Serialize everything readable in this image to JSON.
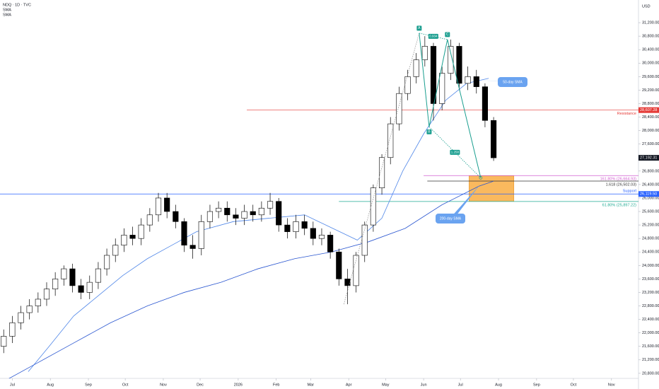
{
  "chart_data": {
    "type": "candlestick",
    "title": "NDQ · 1D · TVC",
    "indicators": [
      "SMA",
      "SMA"
    ],
    "currency": "USD",
    "up_color": "#ffffff",
    "down_color": "#000000",
    "x": [
      -7,
      0,
      7,
      14,
      21,
      28,
      35,
      42,
      49,
      56,
      63,
      70,
      77,
      84,
      91,
      98,
      105,
      112,
      119,
      126,
      133,
      140,
      147,
      154,
      161,
      168,
      175,
      182,
      189,
      196,
      203,
      210,
      217,
      224,
      231,
      238,
      245,
      252,
      259,
      266,
      273,
      280,
      287,
      294,
      301,
      308,
      315,
      322,
      329,
      336,
      343,
      350,
      357,
      364,
      371,
      378,
      385,
      392
    ],
    "open": [
      21600,
      21900,
      22300,
      22600,
      22800,
      23000,
      23300,
      23600,
      23900,
      23400,
      23200,
      23500,
      23900,
      24300,
      24600,
      24900,
      24800,
      25200,
      25500,
      26000,
      25600,
      25300,
      24600,
      24500,
      25300,
      25600,
      25700,
      25500,
      25400,
      25600,
      25500,
      25700,
      25900,
      25200,
      25000,
      25300,
      25100,
      24800,
      24900,
      24400,
      23600,
      23400,
      24300,
      25200,
      26300,
      27200,
      28200,
      29100,
      29600,
      30100,
      30500,
      28800,
      29700,
      30500,
      29400,
      29600,
      29300,
      28300
    ],
    "high": [
      22100,
      22500,
      22800,
      23000,
      23200,
      23500,
      23800,
      24000,
      24050,
      23600,
      23700,
      24100,
      24500,
      24800,
      25100,
      25150,
      25400,
      25700,
      26150,
      26150,
      25800,
      25400,
      24900,
      25500,
      25800,
      25900,
      25900,
      25700,
      25800,
      25800,
      25900,
      26150,
      26000,
      25400,
      25500,
      25500,
      25300,
      25100,
      25000,
      24500,
      23900,
      24400,
      25300,
      26400,
      27300,
      28400,
      29300,
      29800,
      30300,
      30800,
      30600,
      29900,
      30700,
      30600,
      29900,
      29800,
      29400,
      28400
    ],
    "low": [
      21400,
      21700,
      22100,
      22400,
      22600,
      22800,
      23100,
      23400,
      23200,
      23000,
      23000,
      23300,
      23700,
      24100,
      24400,
      24600,
      24600,
      25000,
      25300,
      25400,
      25100,
      24400,
      24200,
      24300,
      25100,
      25400,
      25300,
      25200,
      25200,
      25300,
      25300,
      25500,
      25000,
      24800,
      24800,
      24900,
      24600,
      24600,
      24200,
      23400,
      22850,
      23200,
      24100,
      25000,
      26100,
      27000,
      28000,
      28900,
      29400,
      29900,
      28300,
      28600,
      29500,
      29200,
      29200,
      29100,
      28100,
      27100
    ],
    "close": [
      21900,
      22300,
      22600,
      22800,
      23000,
      23300,
      23600,
      23900,
      23400,
      23200,
      23500,
      23900,
      24300,
      24600,
      24900,
      24800,
      25200,
      25500,
      26000,
      25600,
      25300,
      24600,
      24500,
      25300,
      25600,
      25700,
      25500,
      25400,
      25600,
      25500,
      25700,
      25900,
      25200,
      25000,
      25300,
      25100,
      24800,
      24900,
      24400,
      23600,
      23400,
      24300,
      25200,
      26300,
      27200,
      28200,
      29100,
      29600,
      30100,
      30500,
      28800,
      29700,
      30500,
      29400,
      29600,
      29300,
      28300,
      27192.31
    ],
    "series": [
      {
        "name": "50-day SMA",
        "color": "#4f86e8",
        "x": [
          13,
          30,
          50,
          70,
          90,
          110,
          130,
          150,
          180,
          209,
          238,
          261,
          281,
          301,
          318,
          335,
          353,
          370,
          388
        ],
        "values": [
          20850,
          21600,
          22500,
          23100,
          23700,
          24200,
          24600,
          25000,
          25300,
          25400,
          25500,
          25100,
          24750,
          25400,
          26800,
          27900,
          28900,
          29400,
          29550
        ]
      },
      {
        "name": "200-day SMA",
        "color": "#2a56d0",
        "x": [
          -10,
          20,
          50,
          80,
          110,
          140,
          170,
          200,
          230,
          260,
          290,
          320,
          350,
          380,
          392
        ],
        "values": [
          20500,
          21100,
          21700,
          22300,
          22800,
          23200,
          23500,
          23900,
          24200,
          24400,
          24700,
          25100,
          25800,
          26350,
          26500
        ]
      }
    ],
    "levels": [
      {
        "value": 28607.28,
        "label": "Resistance",
        "price_label": "28,607.28",
        "color": "#e53935",
        "x_start": 191
      },
      {
        "value": 26664.93,
        "label": "161.80% (26,664.93)",
        "color": "#d15fd1",
        "x_start": 335
      },
      {
        "value": 26502.03,
        "label": "1.618 (26,502.03)",
        "color": "#333333",
        "x_start": 338
      },
      {
        "value": 26119.5,
        "label": "Support",
        "price_label": "26,119.50",
        "color": "#2962ff",
        "x_start": -10
      },
      {
        "value": 25897.22,
        "label": "61.80% (25,897.22)",
        "color": "#22ab94",
        "x_start": 266
      }
    ],
    "last_price": {
      "value": 27192.31,
      "label": "27,192.31"
    },
    "zone": {
      "x": [
        372,
        408.5
      ],
      "y": [
        26660,
        25900
      ],
      "color": "#f9ad42"
    },
    "pattern": {
      "color": "#1a9e8f",
      "points": [
        {
          "label": null,
          "x": 270,
          "y": 22850
        },
        {
          "label": "A",
          "x": 331.4,
          "y": 30890
        },
        {
          "label": "B",
          "x": 339.5,
          "y": 28110
        },
        {
          "label": "C",
          "x": 354.4,
          "y": 30700
        },
        {
          "label": null,
          "x": 381.5,
          "y": 26600
        }
      ],
      "ac_ratio": 0.934,
      "bd_ratio": 1.258
    },
    "xlim": [
      -10,
      510
    ],
    "ylim": [
      20650,
      31600
    ],
    "xticks": [
      {
        "value": 0,
        "label": "Jul"
      },
      {
        "value": 31,
        "label": "Aug"
      },
      {
        "value": 62,
        "label": "Sep"
      },
      {
        "value": 92,
        "label": "Oct"
      },
      {
        "value": 123,
        "label": "Nov"
      },
      {
        "value": 153,
        "label": "Dec"
      },
      {
        "value": 184,
        "label": "2026"
      },
      {
        "value": 215,
        "label": "Feb"
      },
      {
        "value": 243,
        "label": "Mar"
      },
      {
        "value": 274,
        "label": "Apr"
      },
      {
        "value": 304,
        "label": "May"
      },
      {
        "value": 335,
        "label": "Jun"
      },
      {
        "value": 365,
        "label": "Jul"
      },
      {
        "value": 396,
        "label": "Aug"
      },
      {
        "value": 427,
        "label": "Sep"
      },
      {
        "value": 457,
        "label": "Oct"
      },
      {
        "value": 488,
        "label": "Nov"
      }
    ],
    "yticks": [
      {
        "value": 20800,
        "label": "20,800.00"
      },
      {
        "value": 21200,
        "label": "21,200.00"
      },
      {
        "value": 21600,
        "label": "21,600.00"
      },
      {
        "value": 22000,
        "label": "22,000.00"
      },
      {
        "value": 22400,
        "label": "22,400.00"
      },
      {
        "value": 22800,
        "label": "22,800.00"
      },
      {
        "value": 23200,
        "label": "23,200.00"
      },
      {
        "value": 23600,
        "label": "23,600.00"
      },
      {
        "value": 24000,
        "label": "24,000.00"
      },
      {
        "value": 24400,
        "label": "24,400.00"
      },
      {
        "value": 24800,
        "label": "24,800.00"
      },
      {
        "value": 25200,
        "label": "25,200.00"
      },
      {
        "value": 25600,
        "label": "25,600.00"
      },
      {
        "value": 26000,
        "label": "26,000.00"
      },
      {
        "value": 26400,
        "label": "26,400.00"
      },
      {
        "value": 26800,
        "label": "26,800.00"
      },
      {
        "value": 27200,
        "label": "27,200.00"
      },
      {
        "value": 27600,
        "label": "27,600.00"
      },
      {
        "value": 28000,
        "label": "28,000.00"
      },
      {
        "value": 28400,
        "label": "28,400.00"
      },
      {
        "value": 28800,
        "label": "28,800.00"
      },
      {
        "value": 29200,
        "label": "29,200.00"
      },
      {
        "value": 29600,
        "label": "29,600.00"
      },
      {
        "value": 30000,
        "label": "30,000.00"
      },
      {
        "value": 30400,
        "label": "30,400.00"
      },
      {
        "value": 30800,
        "label": "30,800.00"
      },
      {
        "value": 31200,
        "label": "31,200.00"
      }
    ]
  }
}
